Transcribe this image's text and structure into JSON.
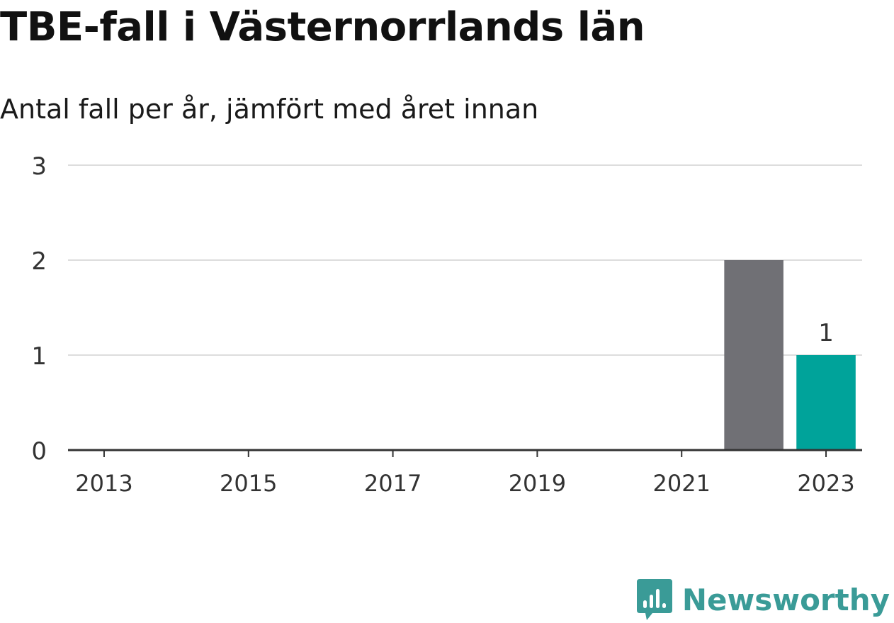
{
  "header": {
    "title": "TBE-fall i Västernorrlands län",
    "subtitle": "Antal fall per år, jämfört med året innan"
  },
  "chart_data": {
    "type": "bar",
    "x": [
      2013,
      2014,
      2015,
      2016,
      2017,
      2018,
      2019,
      2020,
      2021,
      2022,
      2023
    ],
    "values": [
      0,
      0,
      0,
      0,
      0,
      0,
      0,
      0,
      0,
      2,
      1
    ],
    "x_ticks": [
      "2013",
      "2015",
      "2017",
      "2019",
      "2021",
      "2023"
    ],
    "y_ticks": [
      0,
      1,
      2,
      3
    ],
    "ylim": [
      0,
      3
    ],
    "grid": true,
    "highlight_index": 10,
    "data_labels": [
      {
        "index": 10,
        "text": "1"
      }
    ],
    "colors": {
      "previous": "#707075",
      "highlight": "#00a39a",
      "grid": "#dddddd",
      "axis": "#333333"
    }
  },
  "brand": {
    "name": "Newsworthy",
    "logo_icon": "newsworthy-logo-icon",
    "color": "#3a9b97"
  }
}
